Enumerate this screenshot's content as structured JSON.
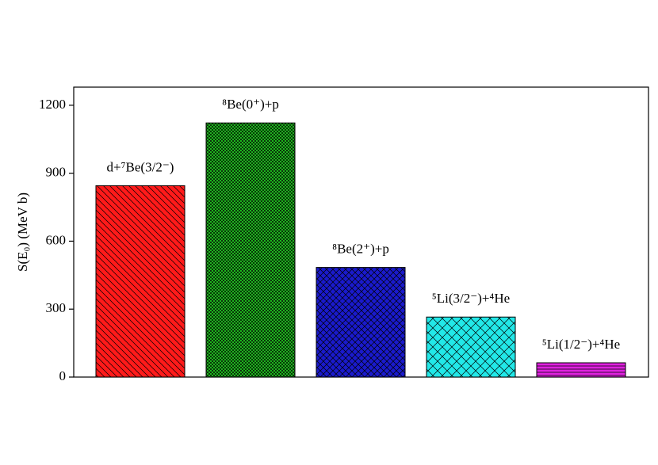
{
  "chart_data": {
    "type": "bar",
    "y_label": "S(E₀) (MeV b)",
    "categories": [
      "d+⁷Be(3/2⁻)",
      "⁸Be(0⁺)+p",
      "⁸Be(2⁺)+p",
      "⁵Li(3/2⁻)+⁴He",
      "⁵Li(1/2⁻)+⁴He"
    ],
    "values": [
      845,
      1122,
      484,
      265,
      63
    ],
    "colors": [
      "#ff1a1a",
      "#22cc22",
      "#1a1acc",
      "#22e8e8",
      "#e022e0"
    ],
    "ylim": [
      0,
      1280
    ],
    "yticks": [
      0,
      300,
      600,
      900,
      1200
    ]
  }
}
